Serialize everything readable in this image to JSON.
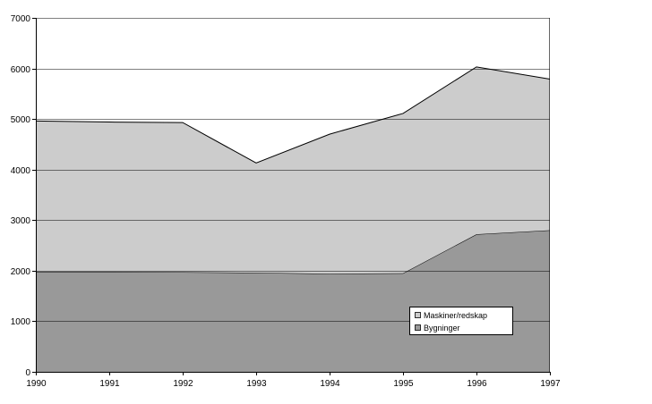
{
  "chart_data": {
    "type": "area",
    "stacked": true,
    "title": "",
    "xlabel": "",
    "ylabel": "",
    "categories": [
      "1990",
      "1991",
      "1992",
      "1993",
      "1994",
      "1995",
      "1996",
      "1997"
    ],
    "series": [
      {
        "name": "Bygninger",
        "values": [
          1980,
          1980,
          1970,
          1960,
          1940,
          1950,
          2720,
          2800
        ],
        "color": "#999999"
      },
      {
        "name": "Maskiner/redskap",
        "values": [
          2980,
          2960,
          2960,
          2170,
          2760,
          3160,
          3310,
          2990
        ],
        "color": "#cccccc"
      }
    ],
    "ylim": [
      0,
      7000
    ],
    "yticks": [
      "0",
      "1000",
      "2000",
      "3000",
      "4000",
      "5000",
      "6000",
      "7000"
    ],
    "grid": true,
    "legend_position": "bottom-right",
    "legend_order": [
      "Maskiner/redskap",
      "Bygninger"
    ],
    "colors": {
      "plot_background": "#ffffff",
      "grid": "#000000",
      "outline": "#000000"
    }
  }
}
